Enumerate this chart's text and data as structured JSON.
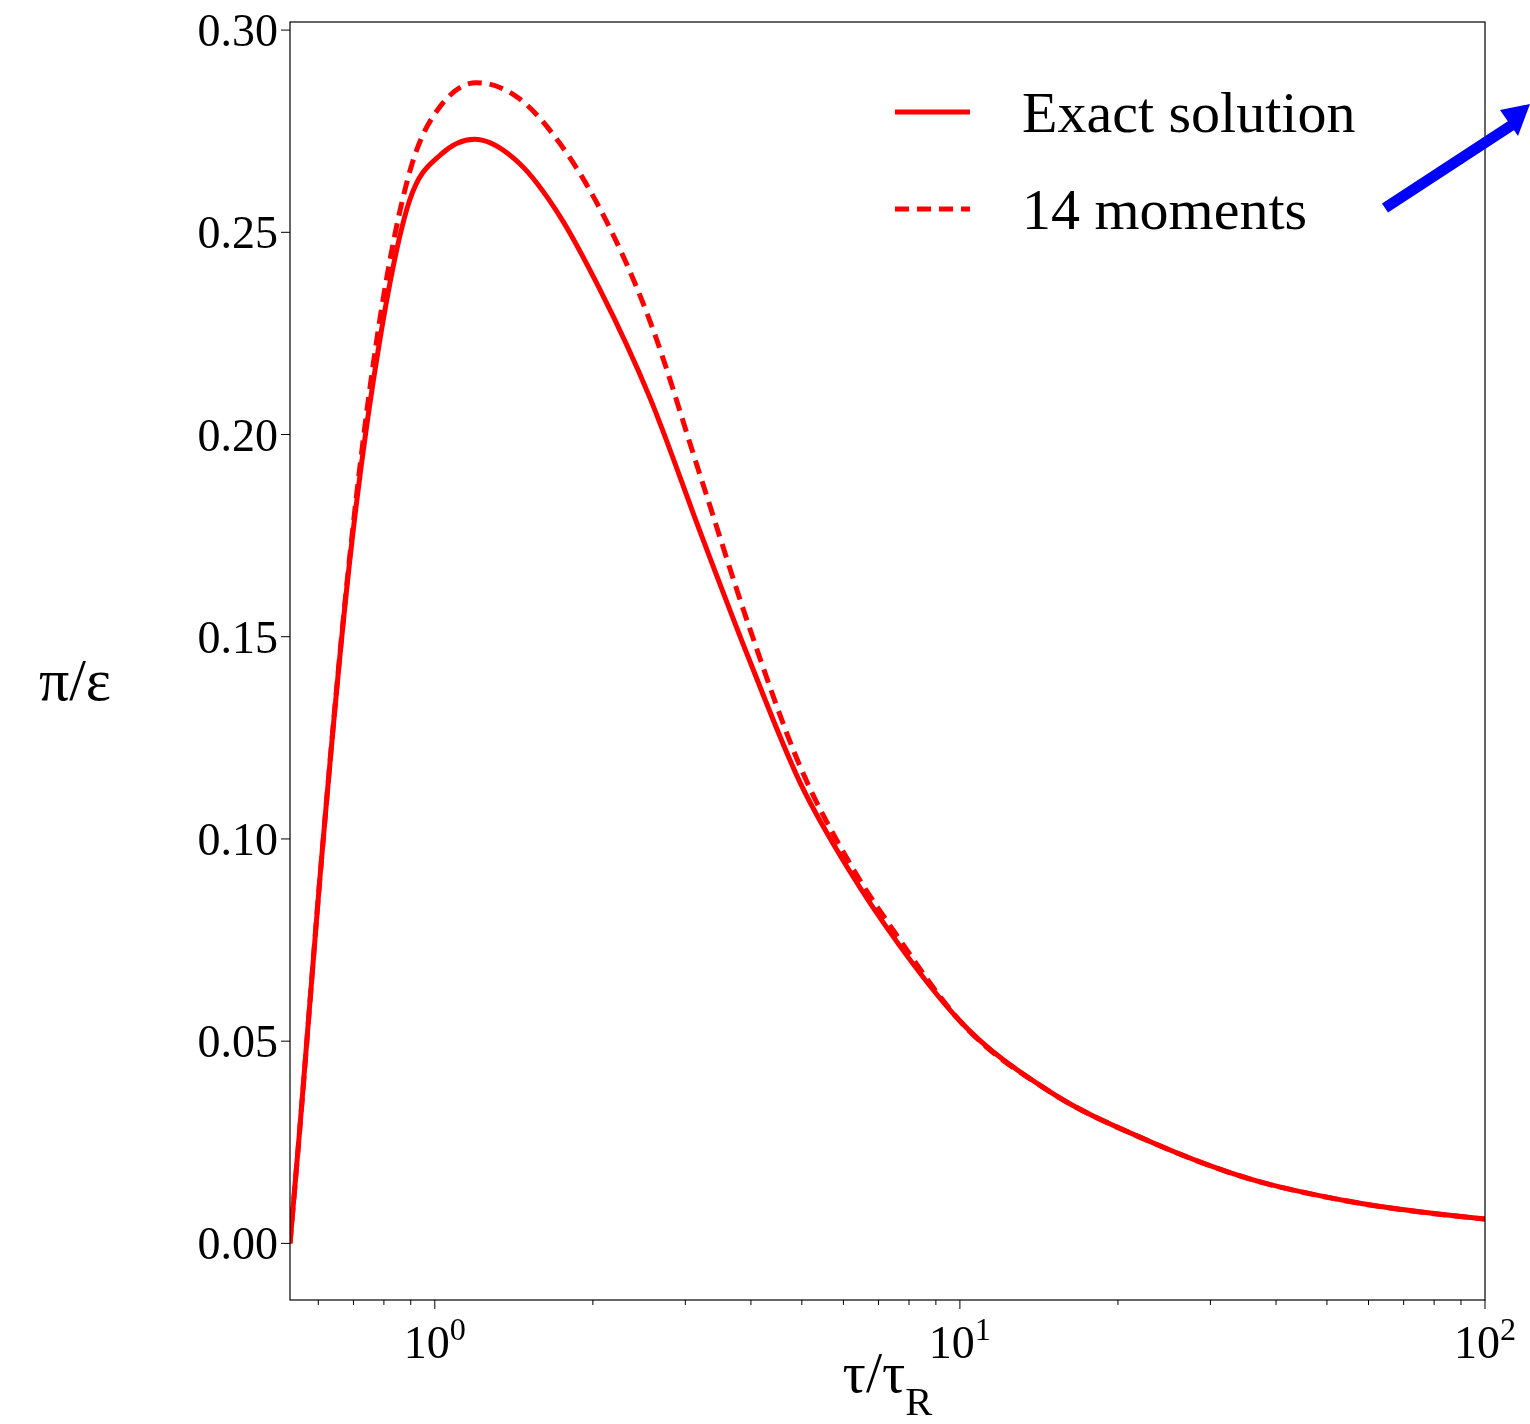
{
  "chart_data": {
    "type": "line",
    "xlabel": "τ/τ$_{R}$",
    "ylabel": "π/ε",
    "log": "x",
    "xlim": [
      0.53,
      100
    ],
    "ylim": [
      -0.014,
      0.302
    ],
    "xticks": [
      {
        "value": 1,
        "label": "10$^{0}$"
      },
      {
        "value": 10,
        "label": "10$^{1}$"
      },
      {
        "value": 100,
        "label": "10$^{2}$"
      },
      {
        "value": 0.6,
        "label": null
      },
      {
        "value": 0.7,
        "label": null
      },
      {
        "value": 0.8,
        "label": null
      },
      {
        "value": 0.9,
        "label": null
      },
      {
        "value": 2,
        "label": null
      },
      {
        "value": 3,
        "label": null
      },
      {
        "value": 4,
        "label": null
      },
      {
        "value": 5,
        "label": null
      },
      {
        "value": 6,
        "label": null
      },
      {
        "value": 7,
        "label": null
      },
      {
        "value": 8,
        "label": null
      },
      {
        "value": 9,
        "label": null
      },
      {
        "value": 20,
        "label": null
      },
      {
        "value": 30,
        "label": null
      },
      {
        "value": 40,
        "label": null
      },
      {
        "value": 50,
        "label": null
      },
      {
        "value": 60,
        "label": null
      },
      {
        "value": 70,
        "label": null
      },
      {
        "value": 80,
        "label": null
      },
      {
        "value": 90,
        "label": null
      }
    ],
    "yticks": [
      {
        "value": 0,
        "label": "0.00"
      },
      {
        "value": 0.05,
        "label": "0.05"
      },
      {
        "value": 0.1,
        "label": "0.10"
      },
      {
        "value": 0.15,
        "label": "0.15"
      },
      {
        "value": 0.2,
        "label": "0.20"
      },
      {
        "value": 0.25,
        "label": "0.25"
      },
      {
        "value": 0.3,
        "label": "0.30"
      }
    ],
    "grid": false,
    "legend": "top right",
    "series": [
      {
        "name": "Exact solution",
        "color": "#ff0000",
        "line_style": "solid",
        "x": [
          0.53,
          0.553,
          0.604,
          0.689,
          0.785,
          0.896,
          1.022,
          1.19,
          1.45,
          1.73,
          2.06,
          2.57,
          3.2,
          3.98,
          4.96,
          6.17,
          7.69,
          10,
          14.8,
          23,
          35.5,
          55,
          100
        ],
        "values": [
          0,
          0.028,
          0.09,
          0.169,
          0.223,
          0.258,
          0.269,
          0.273,
          0.267,
          0.254,
          0.236,
          0.209,
          0.176,
          0.144,
          0.114,
          0.092,
          0.0735,
          0.055,
          0.0376,
          0.0252,
          0.016,
          0.0104,
          0.006
        ]
      },
      {
        "name": "14 moments",
        "color": "#ff0000",
        "line_style": "dashed",
        "x": [
          0.53,
          0.553,
          0.604,
          0.689,
          0.785,
          0.896,
          1.022,
          1.2,
          1.45,
          1.73,
          2.06,
          2.57,
          3.2,
          3.98,
          4.96,
          6.17,
          7.69,
          10,
          14.8,
          23,
          35.5,
          55,
          100
        ],
        "values": [
          0,
          0.028,
          0.09,
          0.17,
          0.228,
          0.265,
          0.281,
          0.287,
          0.283,
          0.272,
          0.256,
          0.228,
          0.19,
          0.152,
          0.118,
          0.094,
          0.075,
          0.055,
          0.0376,
          0.0252,
          0.016,
          0.0104,
          0.006
        ]
      }
    ]
  }
}
